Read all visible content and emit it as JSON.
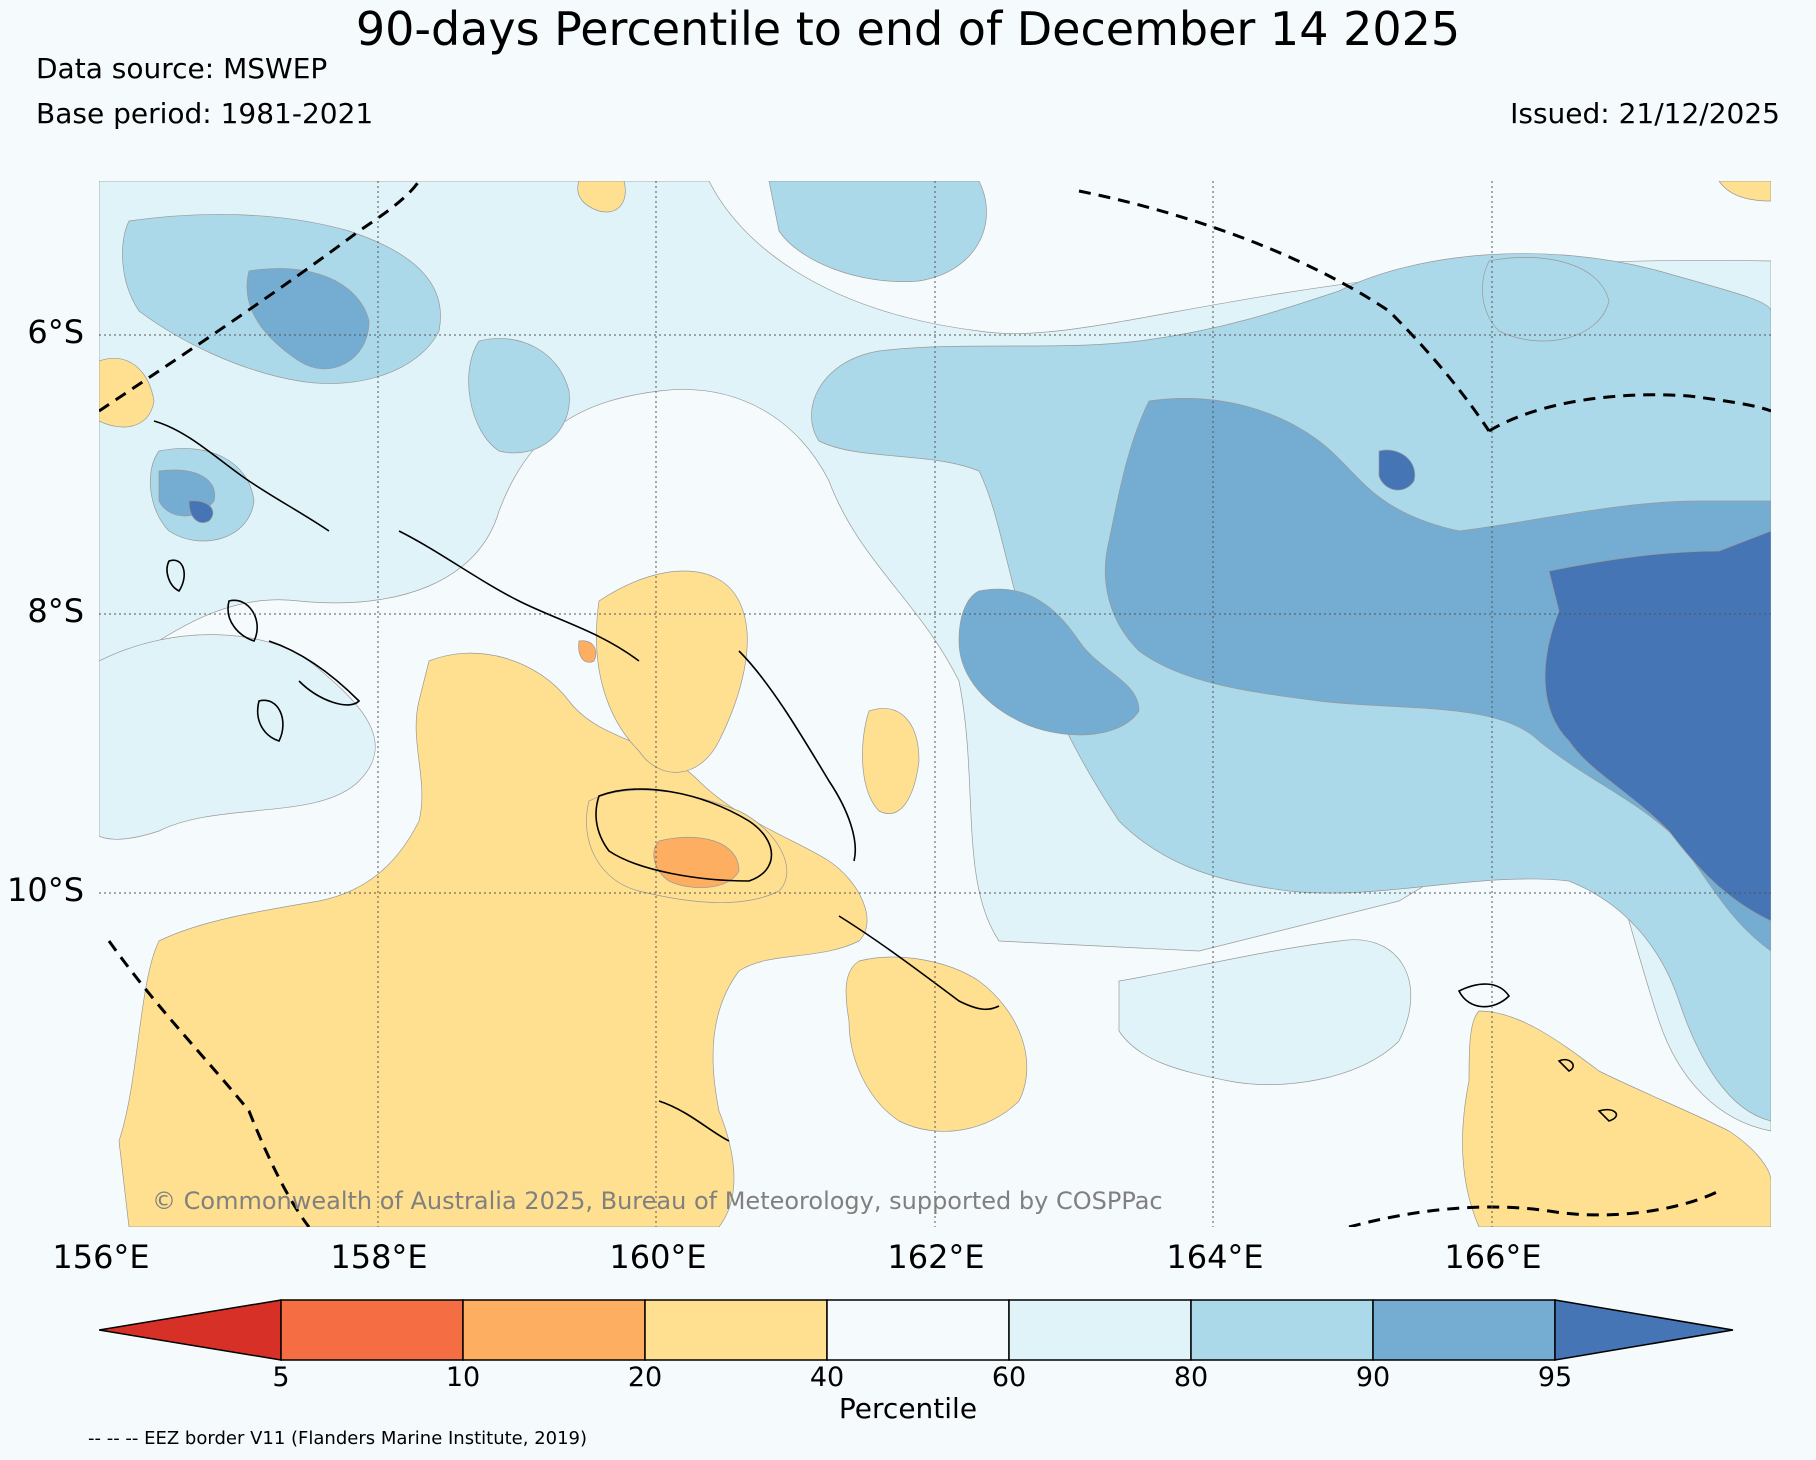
{
  "header": {
    "title": "90-days Percentile to end of December 14 2025",
    "data_source": "Data source: MSWEP",
    "base_period": "Base period: 1981-2021",
    "issued": "Issued: 21/12/2025"
  },
  "map": {
    "latitude_labels": [
      "6°S",
      "8°S",
      "10°S"
    ],
    "longitude_labels": [
      "156°E",
      "158°E",
      "160°E",
      "162°E",
      "164°E",
      "166°E"
    ],
    "copyright": "© Commonwealth of Australia 2025, Bureau of Meteorology, supported by COSPPac"
  },
  "legend": {
    "title": "Percentile",
    "ticks": [
      "5",
      "10",
      "20",
      "40",
      "60",
      "80",
      "90",
      "95"
    ],
    "colors": {
      "below_5": "#d73027",
      "5_10": "#f46d43",
      "10_20": "#fdae61",
      "20_40": "#fee090",
      "40_60": "#f5fafd",
      "60_80": "#e0f3f8",
      "80_90": "#abd9e9",
      "90_95": "#74add1",
      "above_95": "#4575b4"
    },
    "eez_note": "-- -- -- EEZ border V11 (Flanders Marine Institute, 2019)"
  }
}
